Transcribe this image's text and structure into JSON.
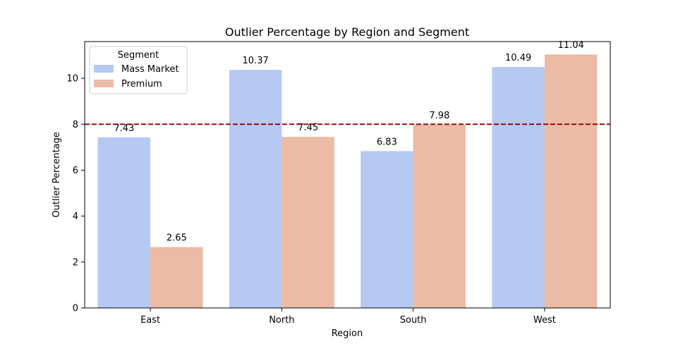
{
  "chart_data": {
    "type": "bar",
    "title": "Outlier Percentage by Region and Segment",
    "xlabel": "Region",
    "ylabel": "Outlier Percentage",
    "categories": [
      "East",
      "North",
      "South",
      "West"
    ],
    "series": [
      {
        "name": "Mass Market",
        "color": "#b5c9f3",
        "values": [
          7.43,
          10.37,
          6.83,
          10.49
        ]
      },
      {
        "name": "Premium",
        "color": "#ecbba5",
        "values": [
          2.65,
          7.45,
          7.98,
          11.04
        ]
      }
    ],
    "ylim": [
      0,
      11.6
    ],
    "yticks": [
      0,
      2,
      4,
      6,
      8,
      10
    ],
    "reference_line": {
      "value": 8,
      "color": "#8b0000",
      "style": "dashed"
    },
    "legend": {
      "title": "Segment",
      "placement": "top-left"
    },
    "grid": false,
    "data_labels": true
  }
}
